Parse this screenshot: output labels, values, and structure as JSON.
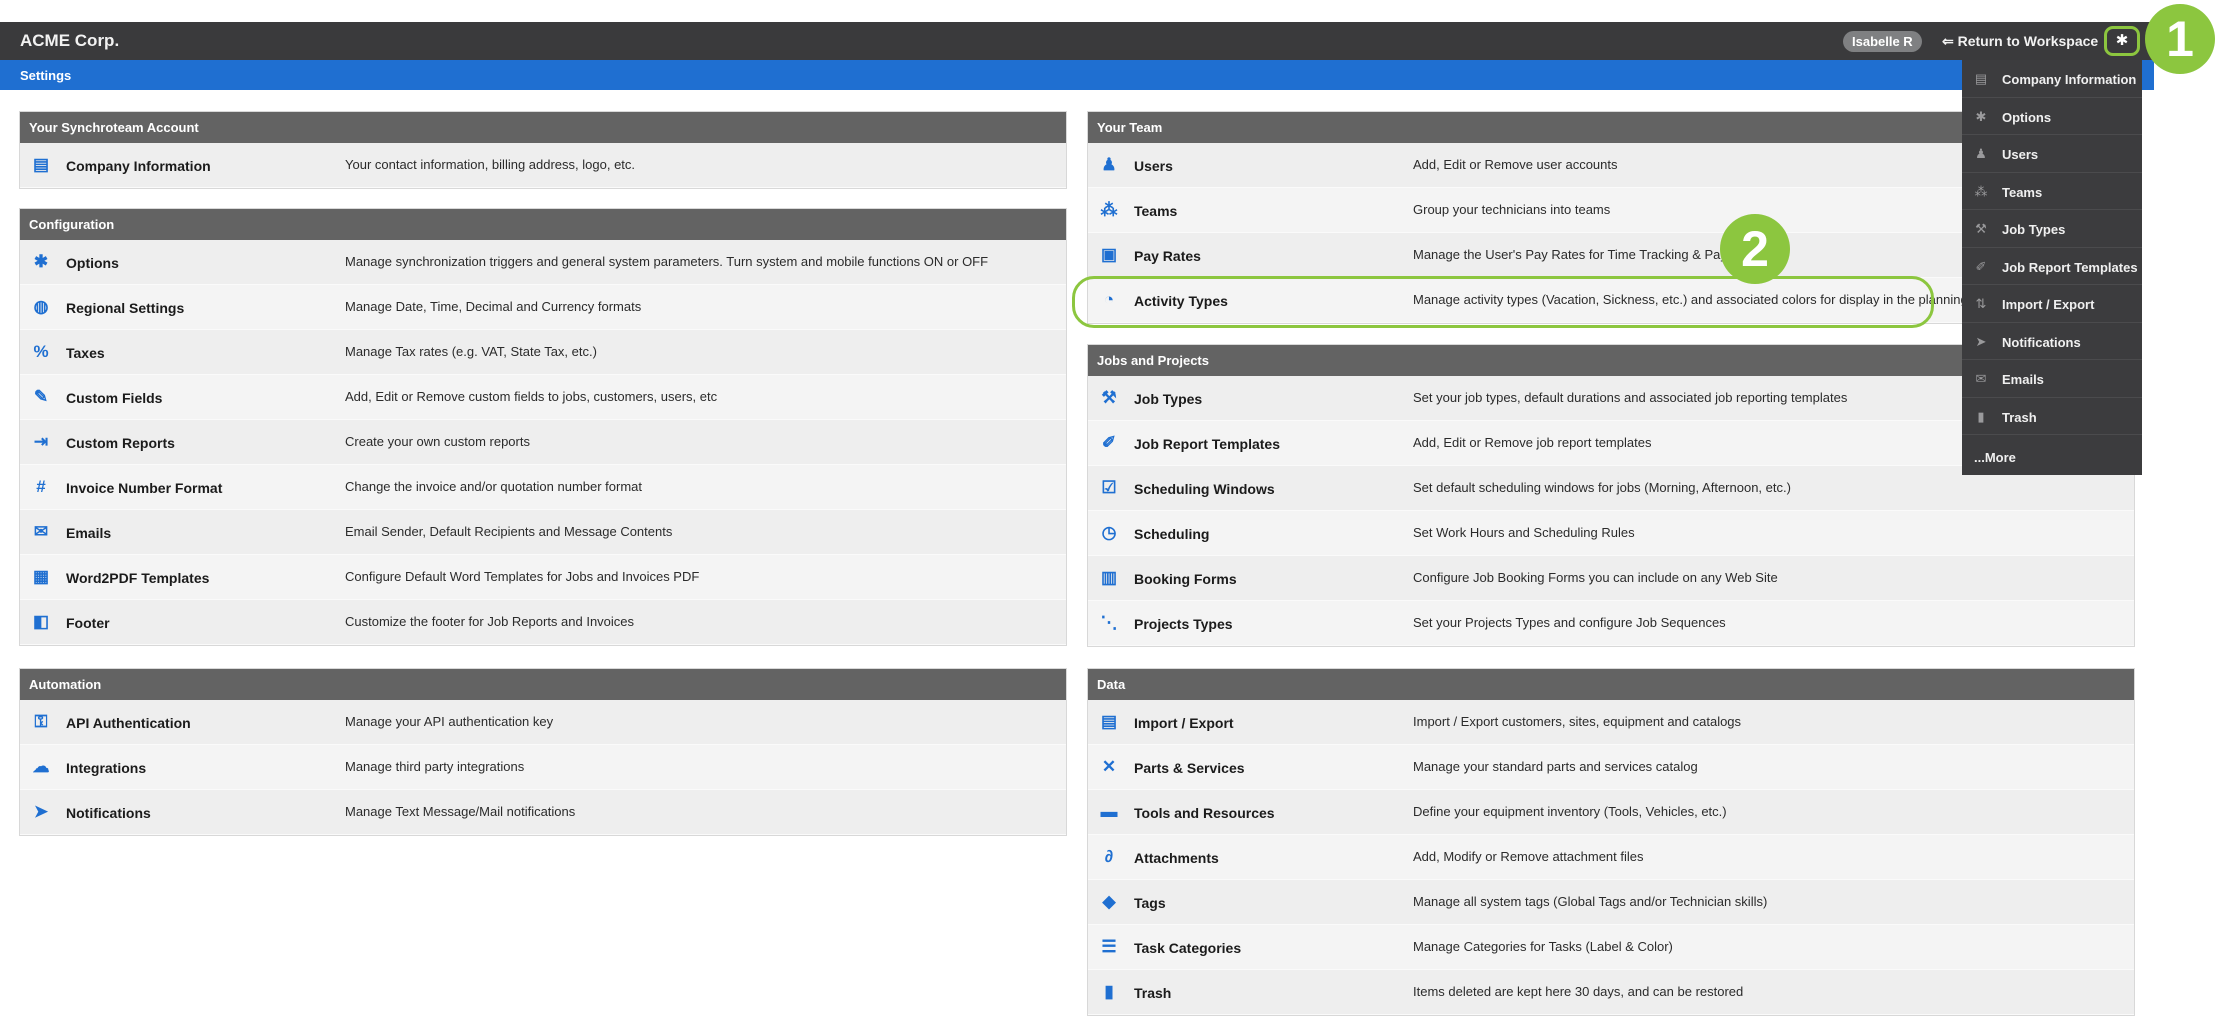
{
  "topbar": {
    "brand": "ACME Corp.",
    "user": "Isabelle R",
    "return_link": "Return to Workspace",
    "gear_icon": "gear-icon"
  },
  "subbar": {
    "title": "Settings"
  },
  "callouts": {
    "one": "1",
    "two": "2",
    "color": "#8cc63f"
  },
  "dropdown": {
    "items": [
      {
        "label": "Company Information",
        "icon": "id-card-icon"
      },
      {
        "label": "Options",
        "icon": "gear-icon"
      },
      {
        "label": "Users",
        "icon": "user-icon"
      },
      {
        "label": "Teams",
        "icon": "team-icon"
      },
      {
        "label": "Job Types",
        "icon": "wrench-icon"
      },
      {
        "label": "Job Report Templates",
        "icon": "report-icon"
      },
      {
        "label": "Import / Export",
        "icon": "import-icon"
      },
      {
        "label": "Notifications",
        "icon": "send-icon"
      },
      {
        "label": "Emails",
        "icon": "inbox-icon"
      },
      {
        "label": "Trash",
        "icon": "trash-icon"
      }
    ],
    "more": "...More"
  },
  "sections": {
    "account": {
      "title": "Your Synchroteam Account",
      "rows": [
        {
          "title": "Company Information",
          "desc": "Your contact information, billing address, logo, etc.",
          "icon": "id-card-icon"
        }
      ]
    },
    "configuration": {
      "title": "Configuration",
      "rows": [
        {
          "title": "Options",
          "desc": "Manage synchronization triggers and general system parameters. Turn system and mobile functions ON or OFF",
          "icon": "gear-icon"
        },
        {
          "title": "Regional Settings",
          "desc": "Manage Date, Time, Decimal and Currency formats",
          "icon": "globe-icon"
        },
        {
          "title": "Taxes",
          "desc": "Manage Tax rates (e.g. VAT, State Tax, etc.)",
          "icon": "percent-icon"
        },
        {
          "title": "Custom Fields",
          "desc": "Add, Edit or Remove custom fields to jobs, customers, users, etc",
          "icon": "edit-icon"
        },
        {
          "title": "Custom Reports",
          "desc": "Create your own custom reports",
          "icon": "file-export-icon"
        },
        {
          "title": "Invoice Number Format",
          "desc": "Change the invoice and/or quotation number format",
          "icon": "hash-icon"
        },
        {
          "title": "Emails",
          "desc": "Email Sender, Default Recipients and Message Contents",
          "icon": "inbox-icon"
        },
        {
          "title": "Word2PDF Templates",
          "desc": "Configure Default Word Templates for Jobs and Invoices PDF",
          "icon": "pdf-icon"
        },
        {
          "title": "Footer",
          "desc": "Customize the footer for Job Reports and Invoices",
          "icon": "code-file-icon"
        }
      ]
    },
    "automation": {
      "title": "Automation",
      "rows": [
        {
          "title": "API Authentication",
          "desc": "Manage your API authentication key",
          "icon": "key-icon"
        },
        {
          "title": "Integrations",
          "desc": "Manage third party integrations",
          "icon": "cloud-icon"
        },
        {
          "title": "Notifications",
          "desc": "Manage Text Message/Mail notifications",
          "icon": "send-icon"
        }
      ]
    },
    "team": {
      "title": "Your Team",
      "rows": [
        {
          "title": "Users",
          "desc": "Add, Edit or Remove user accounts",
          "icon": "user-edit-icon"
        },
        {
          "title": "Teams",
          "desc": "Group your technicians into teams",
          "icon": "team-icon"
        },
        {
          "title": "Pay Rates",
          "desc": "Manage the User's Pay Rates for Time Tracking & Payroll",
          "icon": "money-icon"
        },
        {
          "title": "Activity Types",
          "desc": "Manage activity types (Vacation, Sickness, etc.) and associated colors for display in the planning",
          "icon": "user-clock-icon"
        }
      ]
    },
    "jobs": {
      "title": "Jobs and Projects",
      "rows": [
        {
          "title": "Job Types",
          "desc": "Set your job types, default durations and associated job reporting templates",
          "icon": "wrench-icon"
        },
        {
          "title": "Job Report Templates",
          "desc": "Add, Edit or Remove job report templates",
          "icon": "report-icon"
        },
        {
          "title": "Scheduling Windows",
          "desc": "Set default scheduling windows for jobs (Morning, Afternoon, etc.)",
          "icon": "calendar-check-icon"
        },
        {
          "title": "Scheduling",
          "desc": "Set Work Hours and Scheduling Rules",
          "icon": "clock-icon"
        },
        {
          "title": "Booking Forms",
          "desc": "Configure Job Booking Forms you can include on any Web Site",
          "icon": "clipboard-icon"
        },
        {
          "title": "Projects Types",
          "desc": "Set your Projects Types and configure Job Sequences",
          "icon": "project-diagram-icon"
        }
      ]
    },
    "data": {
      "title": "Data",
      "rows": [
        {
          "title": "Import / Export",
          "desc": "Import / Export customers, sites, equipment and catalogs",
          "icon": "csv-file-icon"
        },
        {
          "title": "Parts & Services",
          "desc": "Manage your standard parts and services catalog",
          "icon": "tools-icon"
        },
        {
          "title": "Tools and Resources",
          "desc": "Define your equipment inventory (Tools, Vehicles, etc.)",
          "icon": "toolbox-icon"
        },
        {
          "title": "Attachments",
          "desc": "Add, Modify or Remove attachment files",
          "icon": "paperclip-icon"
        },
        {
          "title": "Tags",
          "desc": "Manage all system tags (Global Tags and/or Technician skills)",
          "icon": "tags-icon"
        },
        {
          "title": "Task Categories",
          "desc": "Manage Categories for Tasks (Label & Color)",
          "icon": "list-icon"
        },
        {
          "title": "Trash",
          "desc": "Items deleted are kept here 30 days, and can be restored",
          "icon": "trash-icon"
        }
      ]
    }
  }
}
